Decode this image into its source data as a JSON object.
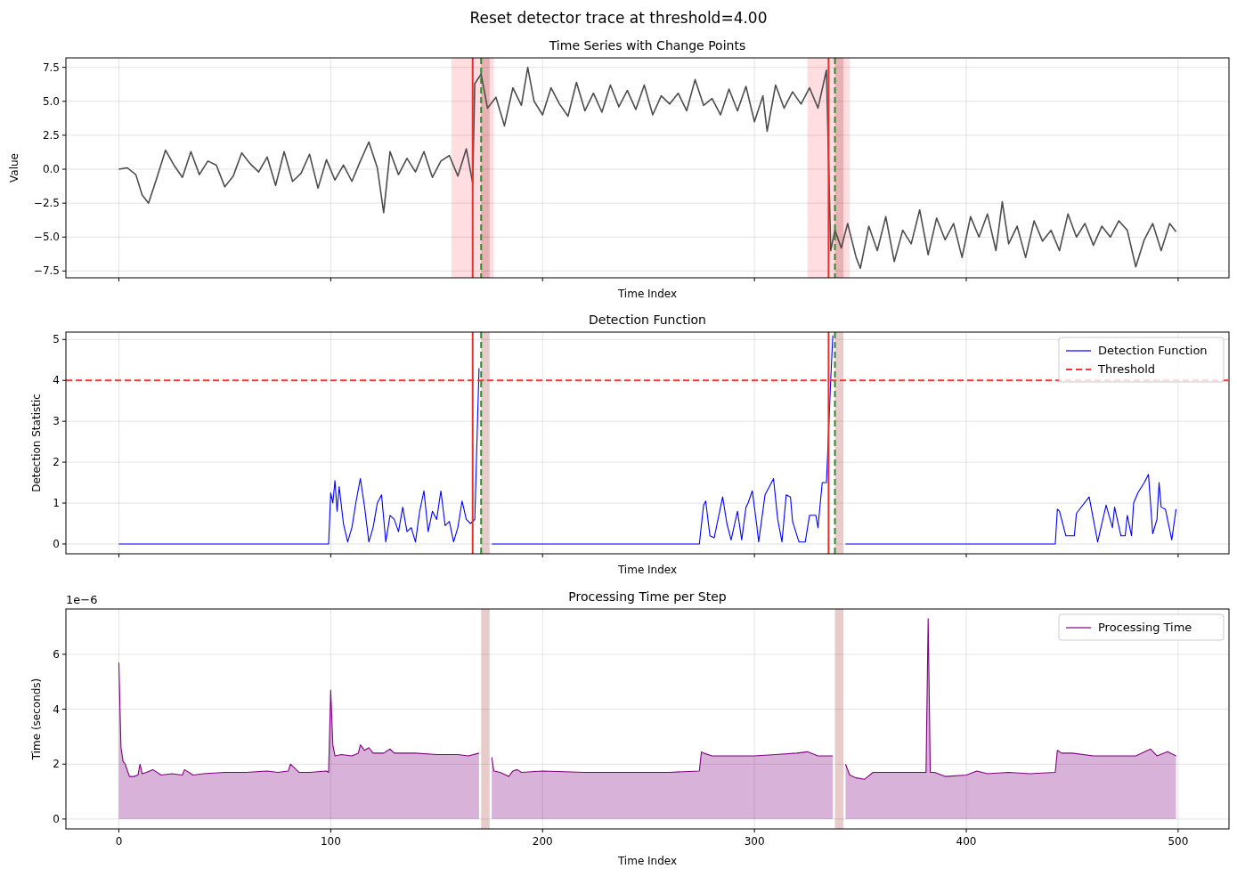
{
  "chart_data": [
    {
      "type": "line",
      "title": "Time Series with Change Points",
      "xlabel": "Time Index",
      "ylabel": "Value",
      "annotations": [
        "Reset detector trace at threshold=4.00"
      ],
      "series": [
        {
          "color": "#4d4d4d",
          "x": [
            0,
            4,
            8,
            11,
            14,
            18,
            22,
            26,
            30,
            34,
            38,
            42,
            46,
            50,
            54,
            58,
            62,
            66,
            70,
            74,
            78,
            82,
            86,
            90,
            94,
            98,
            102,
            106,
            110,
            114,
            118,
            122,
            125,
            128,
            132,
            136,
            140,
            144,
            148,
            152,
            156,
            160,
            164,
            167,
            168,
            171,
            174,
            178,
            182,
            186,
            190,
            193,
            196,
            200,
            204,
            208,
            212,
            216,
            220,
            224,
            228,
            232,
            236,
            240,
            244,
            248,
            252,
            256,
            260,
            264,
            268,
            272,
            276,
            280,
            284,
            288,
            292,
            296,
            300,
            304,
            306,
            310,
            314,
            318,
            322,
            326,
            330,
            334,
            336,
            338,
            341,
            344,
            348,
            350,
            354,
            358,
            362,
            366,
            370,
            374,
            378,
            382,
            386,
            390,
            394,
            398,
            402,
            406,
            410,
            414,
            417,
            420,
            424,
            428,
            432,
            436,
            440,
            444,
            448,
            452,
            456,
            460,
            464,
            468,
            472,
            476,
            480,
            484,
            488,
            492,
            496,
            499
          ],
          "values": [
            0,
            0.1,
            -0.4,
            -1.9,
            -2.5,
            -0.6,
            1.4,
            0.3,
            -0.6,
            1.3,
            -0.4,
            0.6,
            0.3,
            -1.3,
            -0.5,
            1.2,
            0.4,
            -0.2,
            0.9,
            -1.2,
            1.3,
            -0.9,
            -0.3,
            1.1,
            -1.4,
            0.7,
            -0.8,
            0.3,
            -0.9,
            0.6,
            2.0,
            0.1,
            -3.2,
            1.3,
            -0.4,
            0.8,
            -0.2,
            1.3,
            -0.6,
            0.6,
            1.0,
            -0.5,
            1.5,
            -1.0,
            6.3,
            7.0,
            4.5,
            5.3,
            3.2,
            6.0,
            4.7,
            7.5,
            5.0,
            4.0,
            6.0,
            4.8,
            3.9,
            6.4,
            4.3,
            5.6,
            4.2,
            6.2,
            4.6,
            5.8,
            4.4,
            6.2,
            4.0,
            5.4,
            4.8,
            5.6,
            4.3,
            6.6,
            4.7,
            5.2,
            4.0,
            5.9,
            4.3,
            6.1,
            3.5,
            5.4,
            2.8,
            6.2,
            4.5,
            5.7,
            4.8,
            6.0,
            4.5,
            7.3,
            -6.0,
            -4.5,
            -5.8,
            -4.0,
            -6.5,
            -7.3,
            -4.2,
            -6.0,
            -3.5,
            -6.8,
            -4.5,
            -5.5,
            -3.0,
            -6.3,
            -3.6,
            -5.2,
            -4.0,
            -6.5,
            -3.5,
            -5.0,
            -3.3,
            -6.0,
            -2.4,
            -5.5,
            -4.2,
            -6.5,
            -3.8,
            -5.3,
            -4.5,
            -6.0,
            -3.3,
            -5.0,
            -4.0,
            -5.6,
            -4.2,
            -5.0,
            -3.8,
            -4.5,
            -7.2,
            -5.2,
            -4.0,
            -6.0,
            -4.0,
            -4.6
          ]
        }
      ],
      "xlim": [
        -25,
        524
      ],
      "xticks": [
        0,
        100,
        200,
        300,
        400,
        500
      ],
      "ylim": [
        -8.0,
        8.2
      ],
      "yticks": [
        {
          "value": -7.5,
          "label": "−7.5"
        },
        {
          "value": -5,
          "label": "−5.0"
        },
        {
          "value": -2.5,
          "label": "−2.5"
        },
        {
          "value": 0,
          "label": "0.0"
        },
        {
          "value": 2.5,
          "label": "2.5"
        },
        {
          "value": 5,
          "label": "5.0"
        },
        {
          "value": 7.5,
          "label": "7.5"
        }
      ],
      "grid": true,
      "tick_labels": "y",
      "ref_lines": [
        {
          "axis": "x",
          "value": 167,
          "color": "#e8302c"
        },
        {
          "axis": "x",
          "value": 171,
          "color": "#2e8b2e",
          "line_style": "dashed"
        },
        {
          "axis": "x",
          "value": 335,
          "color": "#e8302c"
        },
        {
          "axis": "x",
          "value": 338,
          "color": "#2e8b2e",
          "line_style": "dashed"
        }
      ],
      "bands": [
        {
          "axis": "x",
          "from": 157,
          "to": 177,
          "color": "#ffdde0"
        },
        {
          "axis": "x",
          "from": 171,
          "to": 175,
          "color": "#e8cccc"
        },
        {
          "axis": "x",
          "from": 325,
          "to": 345,
          "color": "#ffdde0"
        },
        {
          "axis": "x",
          "from": 338,
          "to": 342,
          "color": "#e8cccc"
        }
      ]
    },
    {
      "type": "line",
      "title": "Detection Function",
      "xlabel": "Time Index",
      "ylabel": "Detection Statistic",
      "series": [
        {
          "name": "Detection Function",
          "color": "#0000ff",
          "x": [
            0,
            99,
            100,
            101,
            102,
            103,
            104,
            106,
            108,
            110,
            112,
            114,
            116,
            118,
            120,
            122,
            124,
            126,
            128,
            130,
            132,
            134,
            136,
            138,
            140,
            142,
            144,
            146,
            148,
            150,
            152,
            154,
            156,
            158,
            160,
            162,
            164,
            166,
            168,
            170,
            173,
            176,
            274,
            276,
            277,
            279,
            281,
            285,
            287,
            289,
            292,
            294,
            296,
            297,
            299,
            301,
            302,
            305,
            307,
            309,
            311,
            313,
            315,
            317,
            318,
            321,
            324,
            326,
            329,
            330,
            332,
            334,
            336,
            337,
            340,
            343,
            442,
            443,
            444,
            447,
            451,
            452,
            458,
            462,
            466,
            469,
            470,
            473,
            475,
            476,
            478,
            479,
            481,
            484,
            486,
            488,
            490,
            491,
            492,
            494,
            497,
            499
          ],
          "values": [
            0,
            0,
            1.25,
            1.0,
            1.55,
            0.8,
            1.4,
            0.5,
            0.05,
            0.4,
            1.05,
            1.6,
            0.9,
            0.05,
            0.4,
            1.0,
            1.2,
            0.05,
            0.7,
            0.6,
            0.3,
            0.9,
            0.3,
            0.4,
            0.05,
            0.8,
            1.3,
            0.3,
            0.8,
            0.6,
            1.3,
            0.45,
            0.55,
            0.05,
            0.4,
            1.05,
            0.6,
            0.5,
            0.6,
            4.3,
            null,
            0,
            0,
            0.95,
            1.05,
            0.2,
            0.15,
            1.15,
            0.5,
            0.1,
            0.8,
            0.1,
            0.9,
            1.0,
            1.3,
            0.5,
            0.05,
            1.2,
            1.4,
            1.6,
            0.6,
            0.05,
            1.2,
            1.15,
            0.55,
            0.05,
            0.05,
            0.7,
            0.7,
            0.4,
            1.5,
            1.5,
            4.0,
            5.1,
            null,
            0,
            0,
            0.85,
            0.8,
            0.2,
            0.2,
            0.75,
            1.15,
            0.05,
            0.95,
            0.4,
            0.9,
            0.2,
            0.2,
            0.7,
            0.2,
            1.0,
            1.25,
            1.5,
            1.7,
            0.25,
            0.6,
            1.5,
            0.9,
            0.85,
            0.1,
            0.85
          ]
        }
      ],
      "xlim": [
        -25,
        524
      ],
      "xticks": [
        0,
        100,
        200,
        300,
        400,
        500
      ],
      "ylim": [
        -0.24,
        5.18
      ],
      "yticks": [
        0,
        1,
        2,
        3,
        4,
        5
      ],
      "grid": true,
      "tick_labels": "y",
      "legend": "top right",
      "ref_lines": [
        {
          "axis": "y",
          "value": 4,
          "label": "Threshold",
          "color": "#ff3333",
          "line_style": "dashed"
        },
        {
          "axis": "x",
          "value": 167,
          "color": "#e8302c"
        },
        {
          "axis": "x",
          "value": 171,
          "color": "#2e8b2e",
          "line_style": "dashed"
        },
        {
          "axis": "x",
          "value": 335,
          "color": "#e8302c"
        },
        {
          "axis": "x",
          "value": 338,
          "color": "#2e8b2e",
          "line_style": "dashed"
        }
      ],
      "bands": [
        {
          "axis": "x",
          "from": 171,
          "to": 175,
          "color": "#e8cccc"
        },
        {
          "axis": "x",
          "from": 338,
          "to": 342,
          "color": "#e8cccc"
        }
      ]
    },
    {
      "type": "area",
      "title": "Processing Time per Step",
      "xlabel": "Time Index",
      "ylabel": "Time (seconds)",
      "annotations": [
        "1e−6"
      ],
      "series": [
        {
          "name": "Processing Time",
          "color": "#800080",
          "x": [
            0,
            1,
            2,
            3,
            5,
            7,
            9,
            10,
            11,
            13,
            16,
            20,
            25,
            30,
            31,
            35,
            40,
            50,
            60,
            70,
            75,
            80,
            81,
            85,
            90,
            98,
            99,
            100,
            101,
            102,
            105,
            110,
            113,
            114,
            116,
            118,
            120,
            125,
            128,
            130,
            140,
            150,
            160,
            165,
            170,
            173,
            176,
            177,
            180,
            184,
            186,
            188,
            190,
            200,
            220,
            240,
            260,
            274,
            275,
            276,
            280,
            290,
            300,
            310,
            320,
            325,
            330,
            337,
            340,
            343,
            345,
            348,
            352,
            356,
            360,
            370,
            380,
            381,
            382,
            383,
            385,
            390,
            400,
            405,
            410,
            420,
            430,
            442,
            443,
            445,
            450,
            460,
            470,
            480,
            487,
            490,
            495,
            499
          ],
          "values": [
            5.7,
            2.6,
            2.1,
            2.0,
            1.55,
            1.55,
            1.6,
            2.0,
            1.65,
            1.7,
            1.8,
            1.6,
            1.65,
            1.6,
            1.8,
            1.6,
            1.65,
            1.7,
            1.7,
            1.75,
            1.7,
            1.75,
            2.0,
            1.7,
            1.7,
            1.75,
            1.7,
            4.7,
            2.7,
            2.3,
            2.35,
            2.3,
            2.4,
            2.7,
            2.5,
            2.6,
            2.4,
            2.4,
            2.55,
            2.4,
            2.4,
            2.35,
            2.35,
            2.3,
            2.4,
            null,
            2.25,
            1.75,
            1.7,
            1.55,
            1.75,
            1.8,
            1.7,
            1.75,
            1.7,
            1.7,
            1.7,
            1.75,
            2.45,
            2.4,
            2.3,
            2.3,
            2.3,
            2.35,
            2.4,
            2.45,
            2.3,
            2.3,
            null,
            2.0,
            1.6,
            1.5,
            1.45,
            1.7,
            1.7,
            1.7,
            1.7,
            1.7,
            7.3,
            1.7,
            1.7,
            1.55,
            1.6,
            1.75,
            1.65,
            1.7,
            1.65,
            1.7,
            2.5,
            2.4,
            2.4,
            2.3,
            2.3,
            2.3,
            2.55,
            2.3,
            2.45,
            2.3
          ]
        }
      ],
      "xlim": [
        -25,
        524
      ],
      "xticks": [
        0,
        100,
        200,
        300,
        400,
        500
      ],
      "ylim": [
        -0.36,
        7.65
      ],
      "yticks": [
        0,
        2,
        4,
        6
      ],
      "grid": true,
      "legend": "top right",
      "bands": [
        {
          "axis": "x",
          "from": 171,
          "to": 175,
          "color": "#e8cccc"
        },
        {
          "axis": "x",
          "from": 338,
          "to": 342,
          "color": "#e8cccc"
        }
      ]
    }
  ]
}
